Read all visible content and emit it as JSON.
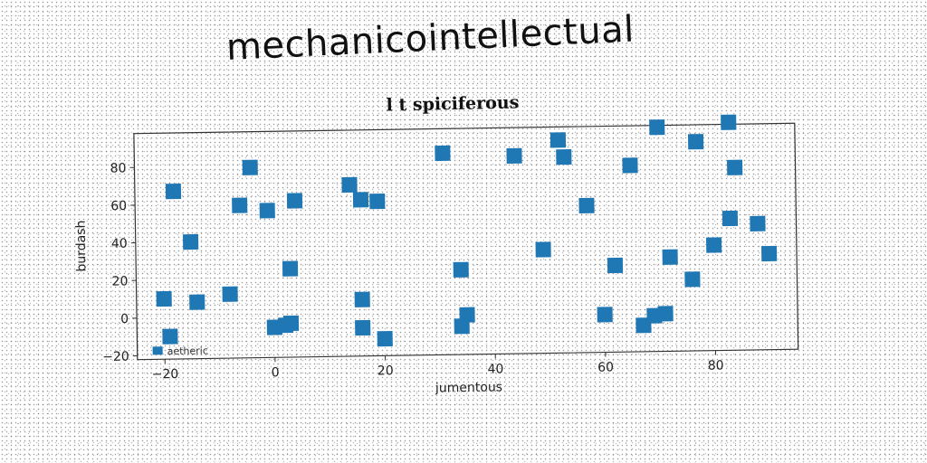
{
  "header": {
    "main_title": "mechanicointellectual"
  },
  "chart_data": {
    "type": "scatter",
    "title": "l t spiciferous",
    "xlabel": "jumentous",
    "ylabel": "burdash",
    "xlim": [
      -25,
      95
    ],
    "ylim": [
      -22,
      98
    ],
    "xticks": [
      -20,
      0,
      20,
      40,
      60,
      80
    ],
    "yticks": [
      -20,
      0,
      20,
      40,
      60,
      80
    ],
    "tick_labels_x": [
      "−20",
      "0",
      "20",
      "40",
      "60",
      "80"
    ],
    "tick_labels_y": [
      "−20",
      "0",
      "20",
      "40",
      "60",
      "80"
    ],
    "grid": false,
    "legend_position": "bottom-left",
    "marker": "square",
    "series": [
      {
        "name": "aetheric",
        "color": "#1f77b4",
        "points": [
          [
            -20,
            10
          ],
          [
            -19,
            -10
          ],
          [
            -18,
            67
          ],
          [
            -14,
            8
          ],
          [
            -15,
            40
          ],
          [
            -8,
            12
          ],
          [
            -6,
            59
          ],
          [
            -4,
            79
          ],
          [
            -1,
            56
          ],
          [
            3,
            25
          ],
          [
            4,
            61
          ],
          [
            0,
            -6
          ],
          [
            2,
            -5
          ],
          [
            3,
            -4
          ],
          [
            14,
            69
          ],
          [
            16,
            61
          ],
          [
            19,
            60
          ],
          [
            16,
            8
          ],
          [
            16,
            -7
          ],
          [
            20,
            -13
          ],
          [
            31,
            85
          ],
          [
            34,
            23
          ],
          [
            35,
            -1
          ],
          [
            34,
            -7
          ],
          [
            44,
            83
          ],
          [
            49,
            33
          ],
          [
            52,
            91
          ],
          [
            53,
            82
          ],
          [
            57,
            56
          ],
          [
            60,
            -2
          ],
          [
            62,
            24
          ],
          [
            65,
            77
          ],
          [
            67,
            -8
          ],
          [
            69,
            -3
          ],
          [
            71,
            -2
          ],
          [
            70,
            97
          ],
          [
            72,
            28
          ],
          [
            76,
            16
          ],
          [
            77,
            89
          ],
          [
            80,
            34
          ],
          [
            83,
            48
          ],
          [
            83,
            99
          ],
          [
            84,
            75
          ],
          [
            88,
            45
          ],
          [
            90,
            29
          ]
        ]
      }
    ]
  }
}
